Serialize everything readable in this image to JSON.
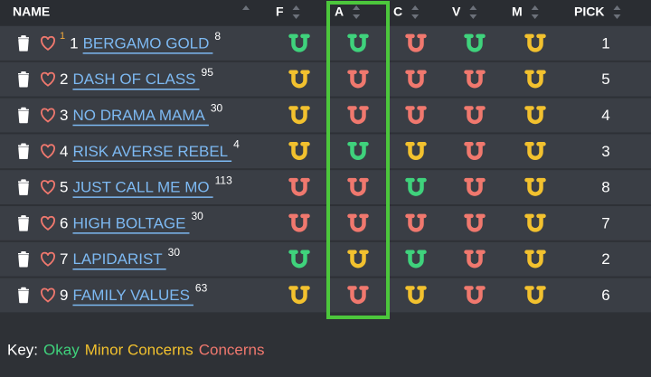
{
  "header": {
    "columns": [
      "NAME",
      "F",
      "A",
      "C",
      "V",
      "M",
      "PICK"
    ]
  },
  "table": {
    "rows": [
      {
        "prefix_sup": 1,
        "number": 1,
        "name": "BERGAMO GOLD",
        "sup": 8,
        "ratings": [
          "Okay",
          "Okay",
          "Concerns",
          "Okay",
          "Minor Concerns"
        ],
        "pick": 1
      },
      {
        "number": 2,
        "name": "DASH OF CLASS",
        "sup": 95,
        "ratings": [
          "Minor Concerns",
          "Concerns",
          "Concerns",
          "Concerns",
          "Minor Concerns"
        ],
        "pick": 5
      },
      {
        "number": 3,
        "name": "NO DRAMA MAMA",
        "sup": 30,
        "ratings": [
          "Minor Concerns",
          "Concerns",
          "Concerns",
          "Concerns",
          "Minor Concerns"
        ],
        "pick": 4
      },
      {
        "number": 4,
        "name": "RISK AVERSE REBEL",
        "sup": 4,
        "ratings": [
          "Minor Concerns",
          "Okay",
          "Minor Concerns",
          "Concerns",
          "Minor Concerns"
        ],
        "pick": 3
      },
      {
        "number": 5,
        "name": "JUST CALL ME MO",
        "sup": 113,
        "ratings": [
          "Concerns",
          "Concerns",
          "Okay",
          "Concerns",
          "Minor Concerns"
        ],
        "pick": 8
      },
      {
        "number": 6,
        "name": "HIGH BOLTAGE",
        "sup": 30,
        "ratings": [
          "Concerns",
          "Concerns",
          "Concerns",
          "Concerns",
          "Minor Concerns"
        ],
        "pick": 7
      },
      {
        "number": 7,
        "name": "LAPIDARIST",
        "sup": 30,
        "ratings": [
          "Okay",
          "Minor Concerns",
          "Okay",
          "Concerns",
          "Minor Concerns"
        ],
        "pick": 2
      },
      {
        "number": 9,
        "name": "FAMILY VALUES",
        "sup": 63,
        "ratings": [
          "Minor Concerns",
          "Concerns",
          "Minor Concerns",
          "Concerns",
          "Minor Concerns"
        ],
        "pick": 6
      }
    ]
  },
  "key": {
    "label": "Key:",
    "items": [
      {
        "text": "Okay",
        "color": "#3fd27c"
      },
      {
        "text": "Minor Concerns",
        "color": "#f2c12e"
      },
      {
        "text": "Concerns",
        "color": "#f0786e"
      }
    ]
  }
}
